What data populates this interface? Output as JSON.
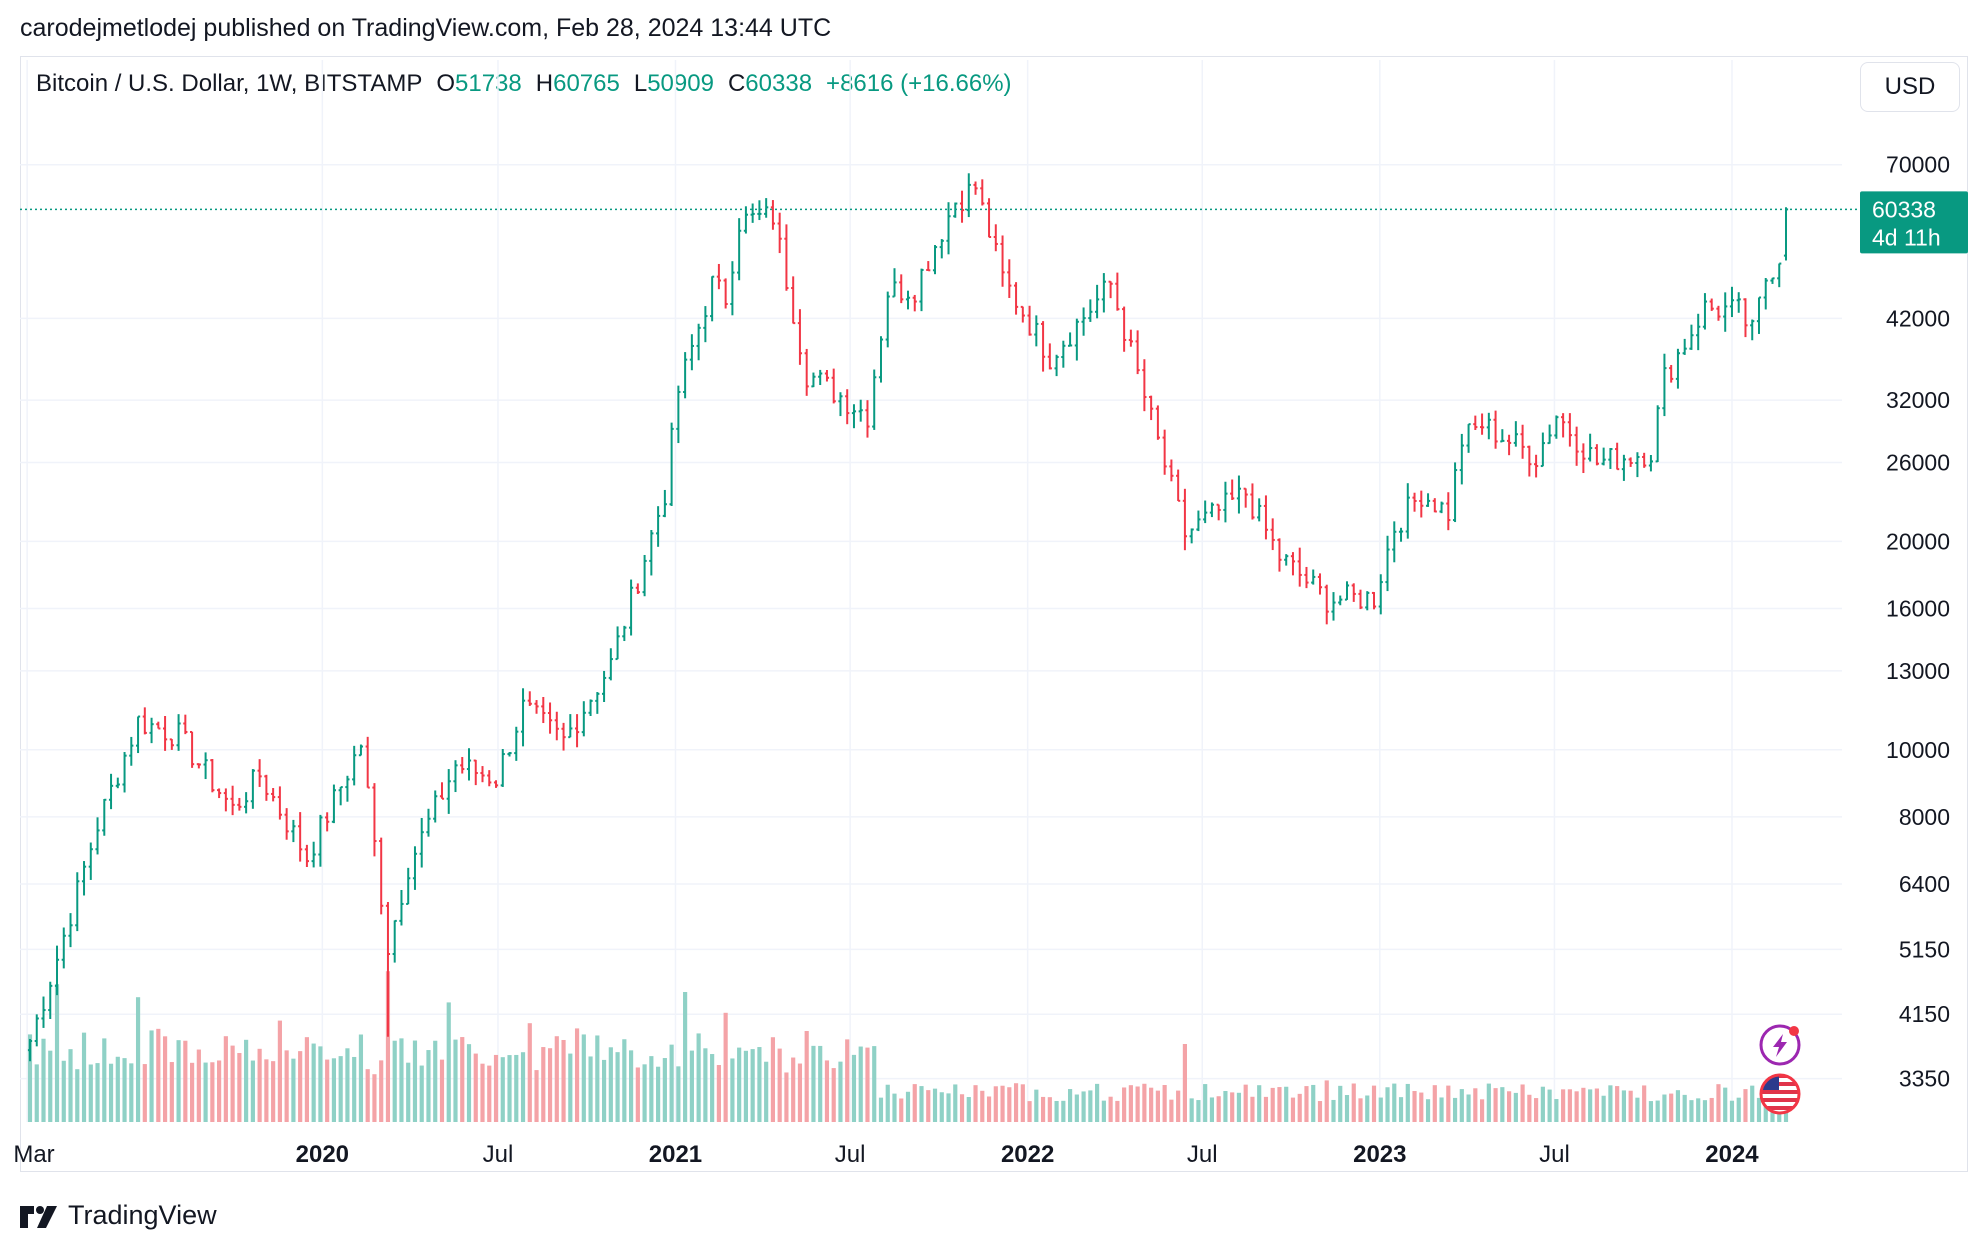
{
  "header": {
    "published": "carodejmetlodej published on TradingView.com, Feb 28, 2024 13:44 UTC"
  },
  "legend": {
    "symbol": "Bitcoin / U.S. Dollar, 1W, BITSTAMP",
    "open_label": "O",
    "open": "51738",
    "high_label": "H",
    "high": "60765",
    "low_label": "L",
    "low": "50909",
    "close_label": "C",
    "close": "60338",
    "change": "+8616 (+16.66%)"
  },
  "currency": "USD",
  "price_badge": {
    "price": "60338",
    "countdown": "4d 11h"
  },
  "footer": {
    "brand": "TradingView"
  },
  "colors": {
    "up": "#089981",
    "down": "#f23645",
    "up_volume": "#8fd1c6",
    "down_volume": "#f4a3a7",
    "grid": "#f0f3fa"
  },
  "icons": [
    "lightning-icon",
    "us-flag-icon"
  ],
  "chart_data": {
    "type": "candlestick",
    "timeframe": "1W",
    "y_scale": "log",
    "grid": true,
    "y_ticks": [
      3350,
      4150,
      5150,
      6400,
      8000,
      10000,
      13000,
      16000,
      20000,
      26000,
      32000,
      42000,
      70000
    ],
    "x_ticks": [
      "Mar",
      "2020",
      "Jul",
      "2021",
      "Jul",
      "2022",
      "Jul",
      "2023",
      "Jul",
      "2024"
    ],
    "x_range": [
      "2019-03-04",
      "2024-02-26"
    ],
    "ylim": [
      2900,
      76000
    ],
    "last_price": 60338,
    "close_anchors": [
      [
        "2019-03-04",
        3800
      ],
      [
        "2019-04-01",
        5000
      ],
      [
        "2019-05-13",
        7800
      ],
      [
        "2019-06-24",
        11000
      ],
      [
        "2019-08-05",
        10500
      ],
      [
        "2019-09-30",
        8200
      ],
      [
        "2019-10-28",
        9200
      ],
      [
        "2019-12-16",
        7000
      ],
      [
        "2020-02-10",
        10200
      ],
      [
        "2020-03-09",
        5200
      ],
      [
        "2020-03-30",
        6800
      ],
      [
        "2020-05-18",
        9500
      ],
      [
        "2020-06-29",
        9100
      ],
      [
        "2020-07-27",
        11500
      ],
      [
        "2020-09-07",
        10300
      ],
      [
        "2020-10-26",
        13300
      ],
      [
        "2020-12-21",
        23500
      ],
      [
        "2021-01-04",
        33000
      ],
      [
        "2021-02-08",
        47000
      ],
      [
        "2021-02-22",
        45000
      ],
      [
        "2021-03-08",
        58000
      ],
      [
        "2021-04-12",
        59000
      ],
      [
        "2021-05-17",
        35000
      ],
      [
        "2021-07-19",
        30500
      ],
      [
        "2021-08-09",
        46000
      ],
      [
        "2021-09-06",
        46500
      ],
      [
        "2021-10-18",
        62000
      ],
      [
        "2021-11-08",
        65000
      ],
      [
        "2021-12-06",
        48000
      ],
      [
        "2022-01-24",
        37000
      ],
      [
        "2022-03-28",
        47000
      ],
      [
        "2022-05-09",
        30000
      ],
      [
        "2022-06-13",
        20500
      ],
      [
        "2022-08-15",
        23500
      ],
      [
        "2022-09-19",
        19000
      ],
      [
        "2022-11-07",
        16500
      ],
      [
        "2022-12-26",
        16600
      ],
      [
        "2023-01-16",
        21000
      ],
      [
        "2023-02-13",
        23500
      ],
      [
        "2023-03-13",
        22000
      ],
      [
        "2023-03-27",
        28000
      ],
      [
        "2023-04-17",
        29500
      ],
      [
        "2023-06-12",
        26500
      ],
      [
        "2023-07-03",
        30500
      ],
      [
        "2023-08-14",
        26000
      ],
      [
        "2023-10-09",
        27000
      ],
      [
        "2023-10-23",
        34500
      ],
      [
        "2023-12-04",
        43500
      ],
      [
        "2024-01-08",
        43000
      ],
      [
        "2024-01-22",
        40000
      ],
      [
        "2024-02-05",
        48000
      ],
      [
        "2024-02-19",
        51738
      ],
      [
        "2024-02-26",
        60338
      ]
    ],
    "volume_peaks": [
      [
        "2019-04-01",
        0.53
      ],
      [
        "2019-06-24",
        0.48
      ],
      [
        "2019-09-23",
        0.33
      ],
      [
        "2019-11-18",
        0.39
      ],
      [
        "2020-03-09",
        0.58
      ],
      [
        "2020-05-11",
        0.46
      ],
      [
        "2020-08-03",
        0.38
      ],
      [
        "2020-09-21",
        0.36
      ],
      [
        "2021-01-11",
        0.5
      ],
      [
        "2021-02-22",
        0.42
      ],
      [
        "2021-05-17",
        0.35
      ],
      [
        "2021-11-15",
        0.12
      ],
      [
        "2022-06-13",
        0.3
      ],
      [
        "2022-11-07",
        0.16
      ],
      [
        "2023-03-13",
        0.14
      ]
    ]
  }
}
